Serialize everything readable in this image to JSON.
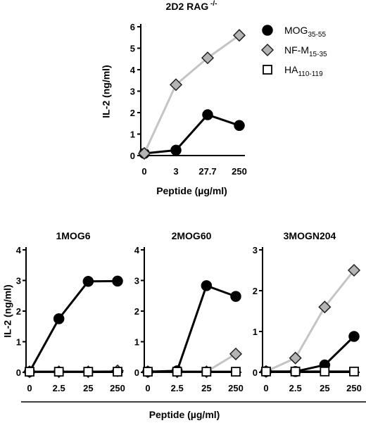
{
  "colors": {
    "MOG": "#000000",
    "NFM_line": "#c4c4c4",
    "NFM_marker": "#b4b4b4",
    "HA_line": "#000000",
    "HA_marker": "#ffffff"
  },
  "legend": {
    "placement": "top-right",
    "entries": [
      {
        "base": "MOG",
        "sub": "35-55",
        "marker": "circle"
      },
      {
        "base": "NF-M",
        "sub": "15-35",
        "marker": "diamond"
      },
      {
        "base": "HA",
        "sub": "110-119",
        "marker": "square"
      }
    ]
  },
  "shared_xlabel": "Peptide (µg/ml)",
  "chart_data": [
    {
      "type": "line",
      "title": "2D2 RAG",
      "title_sup": "-/-",
      "xlabel": "Peptide (µg/ml)",
      "ylabel": "IL-2  (ng/ml)",
      "categories": [
        "0",
        "3",
        "27.7",
        "250"
      ],
      "ylim": [
        0,
        6
      ],
      "yticks": [
        "0",
        "1",
        "2",
        "3",
        "4",
        "5",
        "6"
      ],
      "series": [
        {
          "name": "MOG35-55",
          "values": [
            0.1,
            0.25,
            1.9,
            1.4
          ]
        },
        {
          "name": "NF-M15-35",
          "values": [
            0.1,
            3.3,
            4.55,
            5.6
          ]
        }
      ]
    },
    {
      "type": "line",
      "title": "1MOG6",
      "xlabel": "",
      "ylabel": "IL-2  (ng/ml)",
      "categories": [
        "0",
        "2.5",
        "25",
        "250"
      ],
      "ylim": [
        0,
        4
      ],
      "yticks": [
        "0",
        "1",
        "2",
        "3",
        "4"
      ],
      "series": [
        {
          "name": "NF-M15-35",
          "values": [
            0.02,
            0.02,
            0.02,
            0.05
          ]
        },
        {
          "name": "MOG35-55",
          "values": [
            0.02,
            1.75,
            2.97,
            2.98
          ]
        },
        {
          "name": "HA110-119",
          "values": [
            0.02,
            0.02,
            0.02,
            0.02
          ]
        }
      ]
    },
    {
      "type": "line",
      "title": "2MOG60",
      "xlabel": "",
      "ylabel": "",
      "categories": [
        "0",
        "2.5",
        "25",
        "250"
      ],
      "ylim": [
        0,
        4
      ],
      "yticks": [
        "0",
        "1",
        "2",
        "3",
        "4"
      ],
      "series": [
        {
          "name": "NF-M15-35",
          "values": [
            0.02,
            0.02,
            0.02,
            0.6
          ]
        },
        {
          "name": "MOG35-55",
          "values": [
            0.02,
            0.05,
            2.83,
            2.48
          ]
        },
        {
          "name": "HA110-119",
          "values": [
            0.02,
            0.02,
            0.02,
            0.02
          ]
        }
      ]
    },
    {
      "type": "line",
      "title": "3MOGN204",
      "xlabel": "",
      "ylabel": "",
      "categories": [
        "0",
        "2.5",
        "25",
        "250"
      ],
      "ylim": [
        0,
        3
      ],
      "yticks": [
        "0",
        "1",
        "2",
        "3"
      ],
      "series": [
        {
          "name": "NF-M15-35",
          "values": [
            0.02,
            0.35,
            1.6,
            2.5
          ]
        },
        {
          "name": "MOG35-55",
          "values": [
            0.02,
            0.02,
            0.18,
            0.88
          ]
        },
        {
          "name": "HA110-119",
          "values": [
            0.02,
            0.02,
            0.02,
            0.02
          ]
        }
      ]
    }
  ]
}
